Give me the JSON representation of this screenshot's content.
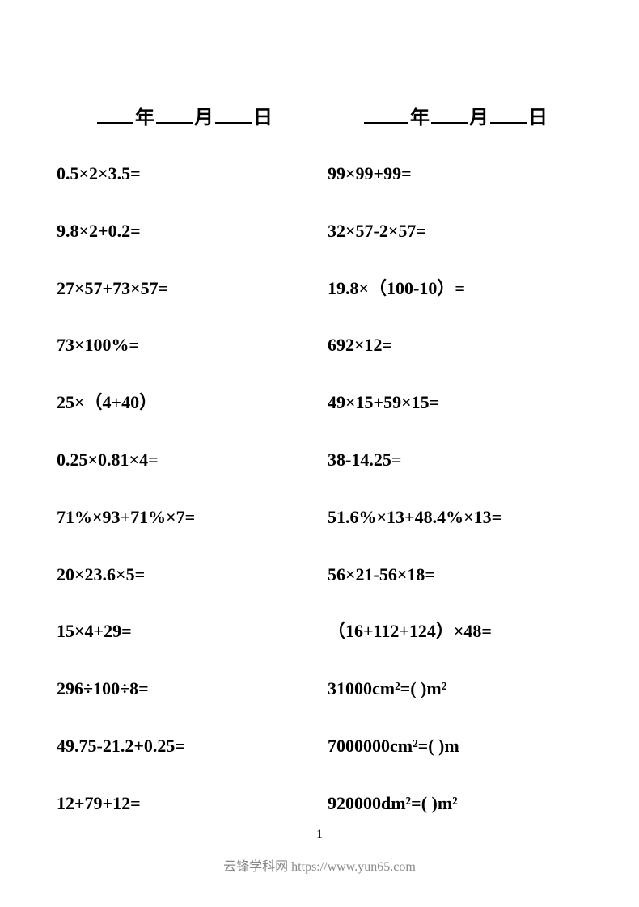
{
  "dateLabels": {
    "year": "年",
    "month": "月",
    "day": "日"
  },
  "leftColumn": {
    "problems": [
      "0.5×2×3.5=",
      "9.8×2+0.2=",
      "27×57+73×57=",
      "73×100%=",
      "25×（4+40）",
      "0.25×0.81×4=",
      "71%×93+71%×7=",
      "20×23.6×5=",
      "15×4+29=",
      "296÷100÷8=",
      "49.75-21.2+0.25=",
      "12+79+12="
    ]
  },
  "rightColumn": {
    "problems": [
      "99×99+99=",
      "32×57-2×57=",
      "19.8×（100-10）=",
      "692×12=",
      "49×15+59×15=",
      "38-14.25=",
      "51.6%×13+48.4%×13=",
      "56×21-56×18=",
      "（16+112+124）×48=",
      "31000cm²=(   )m²",
      "7000000cm²=(    )m",
      "920000dm²=(    )m²"
    ]
  },
  "pageNumber": "1",
  "footer": "云锋学科网 https://www.yun65.com"
}
